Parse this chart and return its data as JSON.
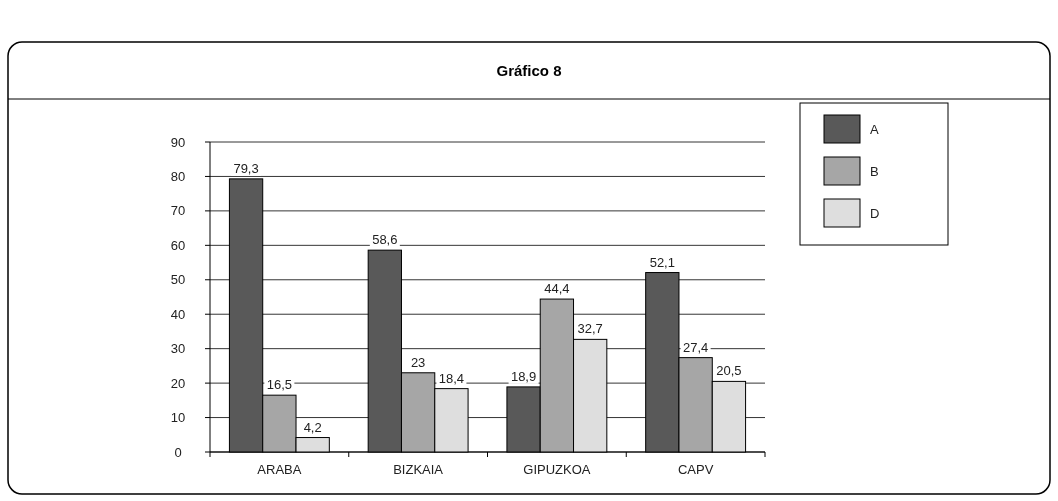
{
  "chart_data": {
    "type": "bar",
    "title": "Gráfico 8",
    "categories": [
      "ARABA",
      "BIZKAIA",
      "GIPUZKOA",
      "CAPV"
    ],
    "series": [
      {
        "name": "A",
        "color": "#595959",
        "values": [
          79.3,
          58.6,
          18.9,
          52.1
        ],
        "value_labels": [
          "79,3",
          "58,6",
          "18,9",
          "52,1"
        ]
      },
      {
        "name": "B",
        "color": "#a6a6a6",
        "values": [
          16.5,
          23,
          44.4,
          27.4
        ],
        "value_labels": [
          "16,5",
          "23",
          "44,4",
          "27,4"
        ]
      },
      {
        "name": "D",
        "color": "#dedede",
        "values": [
          4.2,
          18.4,
          32.7,
          20.5
        ],
        "value_labels": [
          "4,2",
          "18,4",
          "32,7",
          "20,5"
        ]
      }
    ],
    "ylim": [
      0,
      90
    ],
    "yticks": [
      0,
      10,
      20,
      30,
      40,
      50,
      60,
      70,
      80,
      90
    ],
    "grid": "y",
    "legend": "top right"
  }
}
